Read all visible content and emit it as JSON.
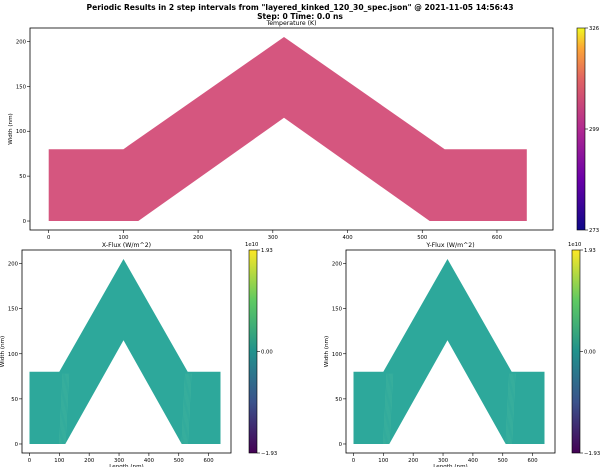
{
  "figure": {
    "title": "Periodic Results in 2 step intervals from \"layered_kinked_120_30_spec.json\" @ 2021-11-05 14:56:43",
    "subtitle": "Step: 0   Time: 0.0 ns"
  },
  "chart_data": [
    {
      "type": "heatmap",
      "title": "Temperature (K)",
      "xlabel": "",
      "ylabel": "Width (nm)",
      "xlim": [
        -25,
        675
      ],
      "ylim": [
        -10,
        215
      ],
      "xticks": [
        0,
        100,
        200,
        300,
        400,
        500,
        600
      ],
      "yticks": [
        0,
        50,
        100,
        150,
        200
      ],
      "fill_color": "#d5567f",
      "shape_outer": [
        [
          0,
          0
        ],
        [
          120,
          0
        ],
        [
          315,
          115
        ],
        [
          510,
          0
        ],
        [
          640,
          0
        ],
        [
          640,
          80
        ],
        [
          530,
          80
        ],
        [
          315,
          205
        ],
        [
          100,
          80
        ],
        [
          0,
          80
        ]
      ],
      "colorbar": {
        "min": 273,
        "mid": 299,
        "max": 326,
        "ticks": [
          "326",
          "299",
          "273"
        ],
        "colormap": "plasma"
      }
    },
    {
      "type": "heatmap",
      "title": "X-Flux (W/m^2)",
      "xlabel": "Length (nm)",
      "ylabel": "Width (nm)",
      "xlim": [
        -25,
        675
      ],
      "ylim": [
        -10,
        215
      ],
      "xticks": [
        0,
        100,
        200,
        300,
        400,
        500,
        600
      ],
      "yticks": [
        0,
        50,
        100,
        150,
        200
      ],
      "fill_color": "#2da89b",
      "shape_outer": [
        [
          0,
          0
        ],
        [
          120,
          0
        ],
        [
          315,
          115
        ],
        [
          510,
          0
        ],
        [
          640,
          0
        ],
        [
          640,
          80
        ],
        [
          530,
          80
        ],
        [
          315,
          205
        ],
        [
          100,
          80
        ],
        [
          0,
          80
        ]
      ],
      "colorbar": {
        "multiplier": "1e10",
        "ticks": [
          "1.93",
          "0.00",
          "−1.93"
        ],
        "colormap": "viridis"
      }
    },
    {
      "type": "heatmap",
      "title": "Y-Flux (W/m^2)",
      "xlabel": "Length (nm)",
      "ylabel": "Width (nm)",
      "xlim": [
        -25,
        675
      ],
      "ylim": [
        -10,
        215
      ],
      "xticks": [
        0,
        100,
        200,
        300,
        400,
        500,
        600
      ],
      "yticks": [
        0,
        50,
        100,
        150,
        200
      ],
      "fill_color": "#2da89b",
      "shape_outer": [
        [
          0,
          0
        ],
        [
          120,
          0
        ],
        [
          315,
          115
        ],
        [
          510,
          0
        ],
        [
          640,
          0
        ],
        [
          640,
          80
        ],
        [
          530,
          80
        ],
        [
          315,
          205
        ],
        [
          100,
          80
        ],
        [
          0,
          80
        ]
      ],
      "colorbar": {
        "multiplier": "1e10",
        "ticks": [
          "1.93",
          "0.00",
          "−1.93"
        ],
        "colormap": "viridis"
      }
    }
  ]
}
